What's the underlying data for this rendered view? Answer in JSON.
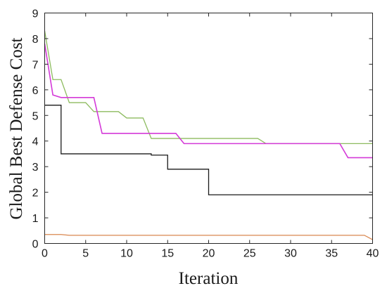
{
  "chart_data": {
    "type": "line",
    "title": "",
    "xlabel": "Iteration",
    "ylabel": "Global Best Defense Cost",
    "xlim": [
      0,
      40
    ],
    "ylim": [
      0,
      9
    ],
    "x_ticks": [
      0,
      5,
      10,
      15,
      20,
      25,
      30,
      35,
      40
    ],
    "y_ticks": [
      0,
      1,
      2,
      3,
      4,
      5,
      6,
      7,
      8,
      9
    ],
    "grid": false,
    "legend": "none",
    "series": [
      {
        "color": "#8dbb5f",
        "step": false,
        "x": [
          0,
          1,
          2,
          3,
          5,
          6,
          9,
          10,
          12,
          13,
          16,
          17,
          26,
          27,
          36,
          40
        ],
        "y": [
          8.3,
          6.4,
          6.4,
          5.5,
          5.5,
          5.15,
          5.15,
          4.9,
          4.9,
          4.1,
          4.1,
          4.1,
          4.1,
          3.9,
          3.9,
          3.9
        ]
      },
      {
        "color": "#d43ad8",
        "step": false,
        "x": [
          0,
          1,
          2,
          3,
          6,
          7,
          16,
          17,
          36,
          37,
          40
        ],
        "y": [
          7.8,
          5.8,
          5.7,
          5.7,
          5.7,
          4.3,
          4.3,
          3.9,
          3.9,
          3.35,
          3.35
        ]
      },
      {
        "color": "#1a1a1a",
        "step": true,
        "x": [
          0,
          1,
          2,
          10,
          13,
          15,
          19,
          20,
          40
        ],
        "y": [
          5.4,
          5.4,
          3.5,
          3.5,
          3.45,
          2.9,
          2.9,
          1.9,
          1.9
        ]
      },
      {
        "color": "#d9874f",
        "step": false,
        "x": [
          0,
          2,
          3,
          39,
          40
        ],
        "y": [
          0.35,
          0.35,
          0.32,
          0.32,
          0.15
        ]
      }
    ]
  }
}
